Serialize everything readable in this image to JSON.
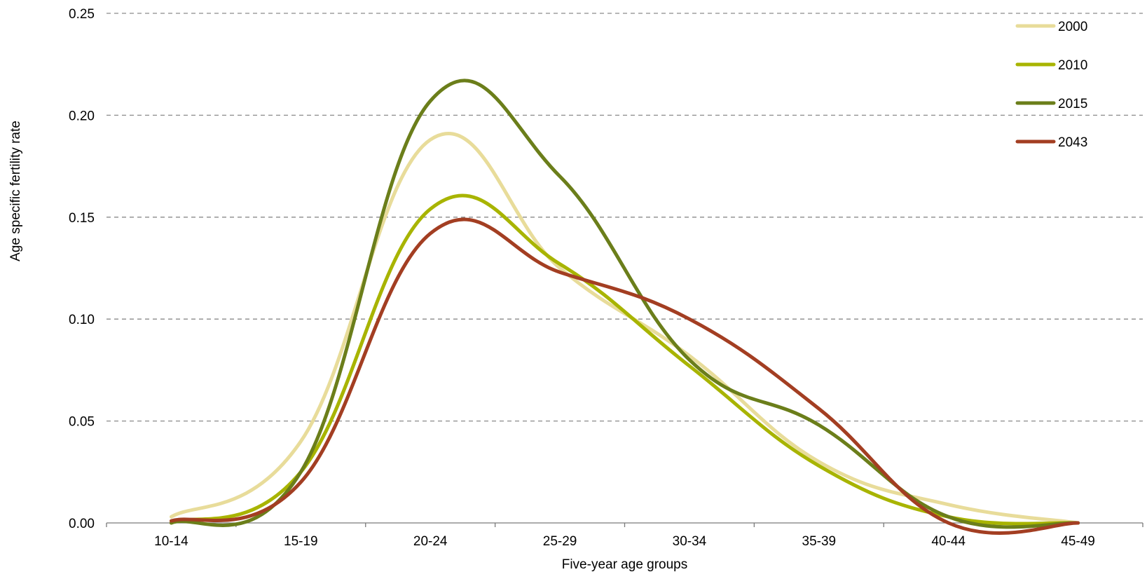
{
  "chart_data": {
    "type": "line",
    "title": "",
    "xlabel": "Five-year age groups",
    "ylabel": "Age specific fertility rate",
    "categories": [
      "10-14",
      "15-19",
      "20-24",
      "25-29",
      "30-34",
      "35-39",
      "40-44",
      "45-49"
    ],
    "ylim": [
      0,
      0.25
    ],
    "yticks": [
      "0.00",
      "0.05",
      "0.10",
      "0.15",
      "0.20",
      "0.25"
    ],
    "grid": "horizontal dashed",
    "legend_position": "top-right",
    "smooth": true,
    "series": [
      {
        "name": "2000",
        "color": "#e8dc9a",
        "values": [
          0.003,
          0.04,
          0.188,
          0.125,
          0.082,
          0.03,
          0.009,
          0.0
        ]
      },
      {
        "name": "2010",
        "color": "#a8b400",
        "values": [
          0.0,
          0.025,
          0.154,
          0.127,
          0.077,
          0.028,
          0.003,
          0.0
        ]
      },
      {
        "name": "2015",
        "color": "#6b7e1a",
        "values": [
          0.0,
          0.025,
          0.207,
          0.17,
          0.08,
          0.048,
          0.003,
          0.0
        ]
      },
      {
        "name": "2043",
        "color": "#a33e22",
        "values": [
          0.001,
          0.02,
          0.142,
          0.123,
          0.1,
          0.056,
          0.0,
          0.0
        ]
      }
    ]
  }
}
